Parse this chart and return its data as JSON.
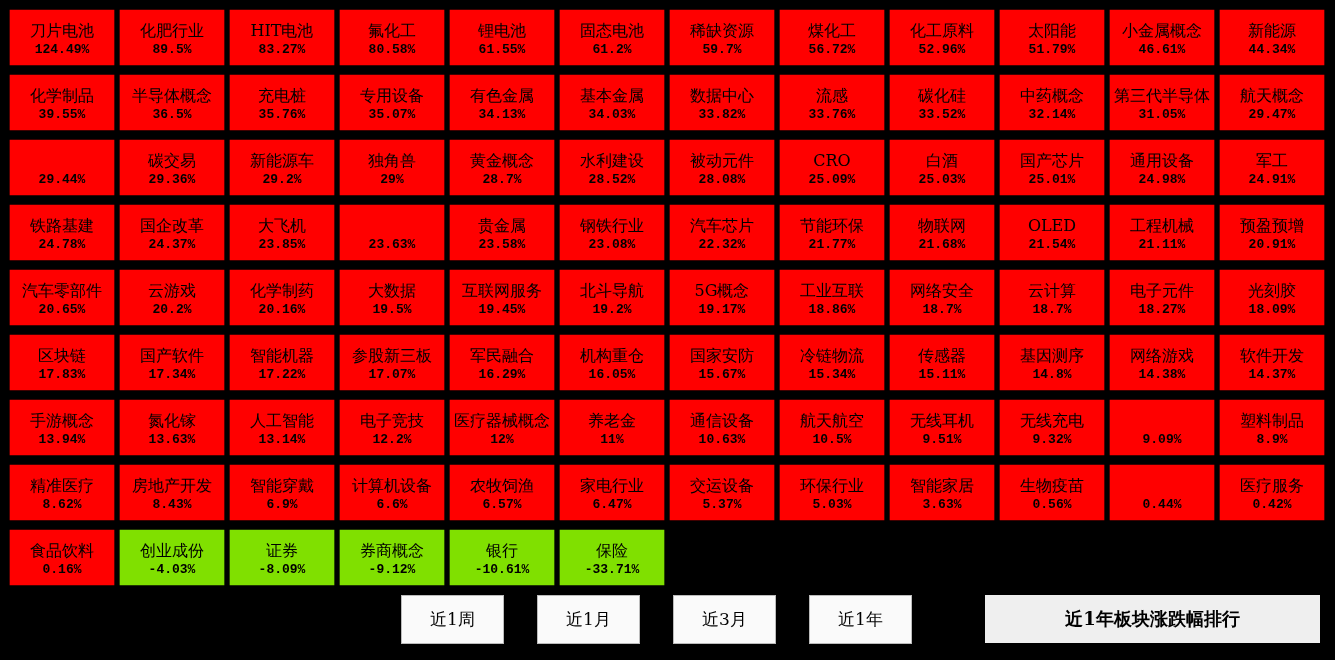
{
  "chart_data": {
    "type": "other",
    "title": "近1年板块涨跌幅排行",
    "annotations": [
      "近1周",
      "近1月",
      "近3月",
      "近1年"
    ],
    "categories": [
      "刀片电池",
      "化肥行业",
      "HIT电池",
      "氟化工",
      "锂电池",
      "固态电池",
      "稀缺资源",
      "煤化工",
      "化工原料",
      "太阳能",
      "小金属概念",
      "新能源",
      "化学制品",
      "半导体概念",
      "充电桩",
      "专用设备",
      "有色金属",
      "基本金属",
      "数据中心",
      "流感",
      "碳化硅",
      "中药概念",
      "第三代半导体",
      "航天概念",
      null,
      "碳交易",
      "新能源车",
      "独角兽",
      "黄金概念",
      "水利建设",
      "被动元件",
      "CRO",
      "白酒",
      "国产芯片",
      "通用设备",
      "军工",
      "铁路基建",
      "国企改革",
      "大飞机",
      null,
      "贵金属",
      "钢铁行业",
      "汽车芯片",
      "节能环保",
      "物联网",
      "OLED",
      "工程机械",
      "预盈预增",
      "汽车零部件",
      "云游戏",
      "化学制药",
      "大数据",
      "互联网服务",
      "北斗导航",
      "5G概念",
      "工业互联",
      "网络安全",
      "云计算",
      "电子元件",
      "光刻胶",
      "区块链",
      "国产软件",
      "智能机器",
      "参股新三板",
      "军民融合",
      "机构重仓",
      "国家安防",
      "冷链物流",
      "传感器",
      "基因测序",
      "网络游戏",
      "软件开发",
      "手游概念",
      "氮化镓",
      "人工智能",
      "电子竞技",
      "医疗器械概念",
      "养老金",
      "通信设备",
      "航天航空",
      "无线耳机",
      "无线充电",
      null,
      "塑料制品",
      "精准医疗",
      "房地产开发",
      "智能穿戴",
      "计算机设备",
      "农牧饲渔",
      "家电行业",
      "交运设备",
      "环保行业",
      "智能家居",
      "生物疫苗",
      null,
      "医疗服务",
      "食品饮料",
      "创业成份",
      "证券",
      "券商概念",
      "银行",
      "保险"
    ],
    "values": [
      124.49,
      89.5,
      83.27,
      80.58,
      61.55,
      61.2,
      59.7,
      56.72,
      52.96,
      51.79,
      46.61,
      44.34,
      39.55,
      36.5,
      35.76,
      35.07,
      34.13,
      34.03,
      33.82,
      33.76,
      33.52,
      32.14,
      31.05,
      29.47,
      29.44,
      29.36,
      29.2,
      29,
      28.7,
      28.52,
      28.08,
      25.09,
      25.03,
      25.01,
      24.98,
      24.91,
      24.78,
      24.37,
      23.85,
      23.63,
      23.58,
      23.08,
      22.32,
      21.77,
      21.68,
      21.54,
      21.11,
      20.91,
      20.65,
      20.2,
      20.16,
      19.5,
      19.45,
      19.2,
      19.17,
      18.86,
      18.7,
      18.7,
      18.27,
      18.09,
      17.83,
      17.34,
      17.22,
      17.07,
      16.29,
      16.05,
      15.67,
      15.34,
      15.11,
      14.8,
      14.38,
      14.37,
      13.94,
      13.63,
      13.14,
      12.2,
      12,
      11,
      10.63,
      10.5,
      9.51,
      9.32,
      9.09,
      8.9,
      8.62,
      8.43,
      6.9,
      6.6,
      6.57,
      6.47,
      5.37,
      5.03,
      3.63,
      0.56,
      0.44,
      0.42,
      0.16,
      -4.03,
      -8.09,
      -9.12,
      -10.61,
      -33.71
    ],
    "value_labels": [
      "124.49%",
      "89.5%",
      "83.27%",
      "80.58%",
      "61.55%",
      "61.2%",
      "59.7%",
      "56.72%",
      "52.96%",
      "51.79%",
      "46.61%",
      "44.34%",
      "39.55%",
      "36.5%",
      "35.76%",
      "35.07%",
      "34.13%",
      "34.03%",
      "33.82%",
      "33.76%",
      "33.52%",
      "32.14%",
      "31.05%",
      "29.47%",
      "29.44%",
      "29.36%",
      "29.2%",
      "29%",
      "28.7%",
      "28.52%",
      "28.08%",
      "25.09%",
      "25.03%",
      "25.01%",
      "24.98%",
      "24.91%",
      "24.78%",
      "24.37%",
      "23.85%",
      "23.63%",
      "23.58%",
      "23.08%",
      "22.32%",
      "21.77%",
      "21.68%",
      "21.54%",
      "21.11%",
      "20.91%",
      "20.65%",
      "20.2%",
      "20.16%",
      "19.5%",
      "19.45%",
      "19.2%",
      "19.17%",
      "18.86%",
      "18.7%",
      "18.7%",
      "18.27%",
      "18.09%",
      "17.83%",
      "17.34%",
      "17.22%",
      "17.07%",
      "16.29%",
      "16.05%",
      "15.67%",
      "15.34%",
      "15.11%",
      "14.8%",
      "14.38%",
      "14.37%",
      "13.94%",
      "13.63%",
      "13.14%",
      "12.2%",
      "12%",
      "11%",
      "10.63%",
      "10.5%",
      "9.51%",
      "9.32%",
      "9.09%",
      "8.9%",
      "8.62%",
      "8.43%",
      "6.9%",
      "6.6%",
      "6.57%",
      "6.47%",
      "5.37%",
      "5.03%",
      "3.63%",
      "0.56%",
      "0.44%",
      "0.42%",
      "0.16%",
      "-4.03%",
      "-8.09%",
      "-9.12%",
      "-10.61%",
      "-33.71%"
    ],
    "colors": [
      "#ff0000",
      "#ff0000",
      "#ff0000",
      "#ff0000",
      "#ff0000",
      "#ff0000",
      "#ff0000",
      "#ff0000",
      "#ff0000",
      "#ff0000",
      "#ff0000",
      "#ff0000",
      "#ff0000",
      "#ff0000",
      "#ff0000",
      "#ff0000",
      "#ff0000",
      "#ff0000",
      "#ff0000",
      "#ff0000",
      "#ff0000",
      "#ff0000",
      "#ff0000",
      "#ff0000",
      "#ff0000",
      "#ff0000",
      "#ff0000",
      "#ff0000",
      "#ff0000",
      "#ff0000",
      "#ff0000",
      "#ff0000",
      "#ff0000",
      "#ff0000",
      "#ff0000",
      "#ff0000",
      "#ff0000",
      "#ff0000",
      "#ff0000",
      "#ff0000",
      "#ff0000",
      "#ff0000",
      "#ff0000",
      "#ff0000",
      "#ff0000",
      "#ff0000",
      "#ff0000",
      "#ff0000",
      "#ff0000",
      "#ff0000",
      "#ff0000",
      "#ff0000",
      "#ff0000",
      "#ff0000",
      "#ff0000",
      "#ff0000",
      "#ff0000",
      "#ff0000",
      "#ff0000",
      "#ff0000",
      "#ff0000",
      "#ff0000",
      "#ff0000",
      "#ff0000",
      "#ff0000",
      "#ff0000",
      "#ff0000",
      "#ff0000",
      "#ff0000",
      "#ff0000",
      "#ff0000",
      "#ff0000",
      "#ff0000",
      "#ff0000",
      "#ff0000",
      "#ff0000",
      "#ff0000",
      "#ff0000",
      "#ff0000",
      "#ff0000",
      "#ff0000",
      "#ff0000",
      "#ff0000",
      "#ff0000",
      "#ff0000",
      "#ff0000",
      "#ff0000",
      "#ff0000",
      "#ff0000",
      "#ff0000",
      "#ff0000",
      "#ff0000",
      "#ff0000",
      "#ff0000",
      "#ff0000",
      "#ff0000",
      "#ff0000",
      "#80e000",
      "#80e000",
      "#80e000",
      "#80e000",
      "#80e000"
    ]
  }
}
